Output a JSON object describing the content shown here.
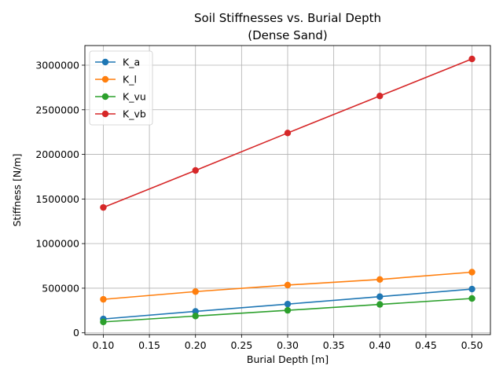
{
  "chart_data": {
    "type": "line",
    "title": "Soil Stiffnesses vs. Burial Depth",
    "subtitle": "(Dense Sand)",
    "xlabel": "Burial Depth [m]",
    "ylabel": "Stiffness [N/m]",
    "x": [
      0.1,
      0.2,
      0.3,
      0.4,
      0.5
    ],
    "xlim": [
      0.08,
      0.52
    ],
    "ylim": [
      -20000,
      3220000
    ],
    "xticks": [
      0.1,
      0.15,
      0.2,
      0.25,
      0.3,
      0.35,
      0.4,
      0.45,
      0.5
    ],
    "xtick_labels": [
      "0.10",
      "0.15",
      "0.20",
      "0.25",
      "0.30",
      "0.35",
      "0.40",
      "0.45",
      "0.50"
    ],
    "yticks": [
      0,
      500000,
      1000000,
      1500000,
      2000000,
      2500000,
      3000000
    ],
    "ytick_labels": [
      "0",
      "500000",
      "1000000",
      "1500000",
      "2000000",
      "2500000",
      "3000000"
    ],
    "grid": true,
    "legend_position": "top-left",
    "series": [
      {
        "name": "K_a",
        "color": "#1f77b4",
        "values": [
          155000,
          240000,
          322000,
          405000,
          490000
        ]
      },
      {
        "name": "K_l",
        "color": "#ff7f0e",
        "values": [
          375000,
          462000,
          535000,
          598000,
          680000
        ]
      },
      {
        "name": "K_vu",
        "color": "#2ca02c",
        "values": [
          122000,
          188000,
          252000,
          318000,
          385000
        ]
      },
      {
        "name": "K_vb",
        "color": "#d62728",
        "values": [
          1405000,
          1820000,
          2240000,
          2655000,
          3070000
        ]
      }
    ]
  }
}
